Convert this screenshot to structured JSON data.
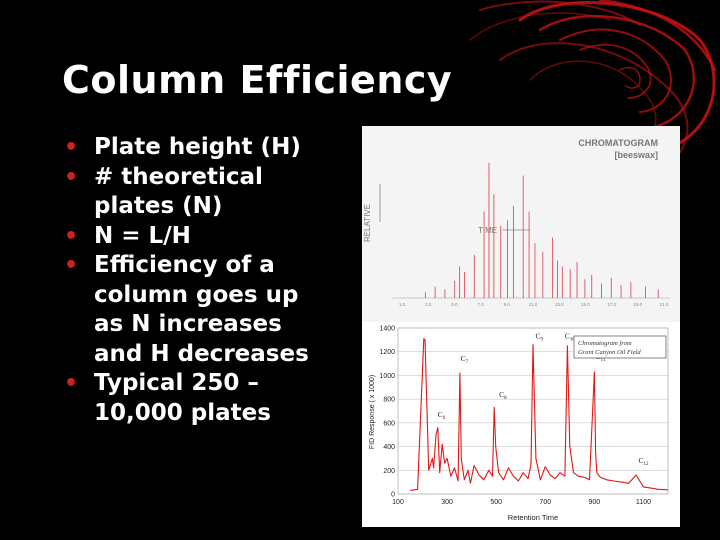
{
  "slide": {
    "title": "Column Efficiency",
    "bullets": [
      {
        "lines": [
          "Plate height (H)"
        ]
      },
      {
        "lines": [
          "# theoretical",
          "plates (N)"
        ]
      },
      {
        "lines": [
          "N = L/H"
        ]
      },
      {
        "lines": [
          "Efficiency of a",
          "column goes up",
          "as N increases",
          "and H decreases"
        ]
      },
      {
        "lines": [
          "Typical 250 –",
          "10,000 plates"
        ]
      }
    ],
    "colors": {
      "background": "#000000",
      "bullet": "#cc2222",
      "text": "#ffffff",
      "swirl": "#cc1010"
    }
  },
  "chart_data": [
    {
      "type": "line",
      "title": "CHROMATOGRAM",
      "subtitle": "[beeswax]",
      "xlabel": "TIME",
      "ylabel": "RELATIVE",
      "series": [
        {
          "x": [
            3,
            4,
            5,
            6,
            6.5,
            7,
            8,
            9,
            9.5,
            10,
            10.7,
            11.4,
            12,
            13,
            13.6,
            14.2,
            15,
            16,
            16.5,
            17,
            17.8,
            18.5,
            19.3,
            20,
            21,
            22,
            23,
            24,
            25.5,
            26.8
          ],
          "y": [
            4,
            8,
            6,
            12,
            22,
            18,
            30,
            60,
            94,
            72,
            50,
            54,
            64,
            85,
            60,
            38,
            32,
            42,
            26,
            22,
            20,
            25,
            13,
            16,
            10,
            14,
            9,
            11,
            8,
            6
          ]
        }
      ],
      "xlim": [
        0,
        28
      ],
      "ylim": [
        0,
        100
      ],
      "tick_labels": [
        "1.0",
        "3.0",
        "5.0",
        "7.0",
        "9.0",
        "11.0",
        "13.0",
        "15.0",
        "17.0",
        "19.0",
        "21.0"
      ]
    },
    {
      "type": "line",
      "xlabel": "Retention Time",
      "ylabel": "FID Response ( x 1000)",
      "xlim": [
        100,
        1200
      ],
      "ylim": [
        0,
        1400
      ],
      "xticks": [
        100,
        300,
        500,
        700,
        900,
        1100
      ],
      "yticks": [
        0,
        200,
        400,
        600,
        800,
        1000,
        1200,
        1400
      ],
      "legend_box": "Chromatogram from Grant Canyon Oil Field",
      "peak_labels": [
        {
          "text": "C6",
          "x": 262,
          "y": 650
        },
        {
          "text": "C7",
          "x": 355,
          "y": 1120
        },
        {
          "text": "C8",
          "x": 512,
          "y": 820
        },
        {
          "text": "C9",
          "x": 660,
          "y": 1310
        },
        {
          "text": "C10",
          "x": 780,
          "y": 1310
        },
        {
          "text": "C11",
          "x": 905,
          "y": 1140
        },
        {
          "text": "C12",
          "x": 1080,
          "y": 260
        }
      ],
      "series": [
        {
          "x": [
            150,
            180,
            205,
            210,
            225,
            240,
            245,
            255,
            262,
            270,
            280,
            290,
            300,
            315,
            330,
            345,
            352,
            358,
            370,
            385,
            395,
            410,
            430,
            450,
            470,
            485,
            492,
            498,
            510,
            530,
            550,
            570,
            590,
            610,
            630,
            642,
            650,
            662,
            680,
            700,
            720,
            740,
            760,
            780,
            790,
            800,
            815,
            835,
            860,
            880,
            900,
            905,
            910,
            925,
            950,
            980,
            1010,
            1040,
            1070,
            1100,
            1130,
            1160,
            1200
          ],
          "y": [
            30,
            40,
            1310,
            1300,
            200,
            300,
            220,
            500,
            560,
            180,
            420,
            260,
            300,
            150,
            220,
            110,
            1020,
            300,
            120,
            200,
            90,
            240,
            160,
            120,
            200,
            150,
            730,
            400,
            180,
            120,
            220,
            150,
            110,
            180,
            130,
            250,
            1260,
            300,
            120,
            230,
            160,
            130,
            180,
            150,
            1250,
            400,
            180,
            150,
            140,
            120,
            1030,
            350,
            180,
            140,
            120,
            110,
            100,
            90,
            160,
            60,
            50,
            40,
            35
          ]
        }
      ]
    }
  ]
}
